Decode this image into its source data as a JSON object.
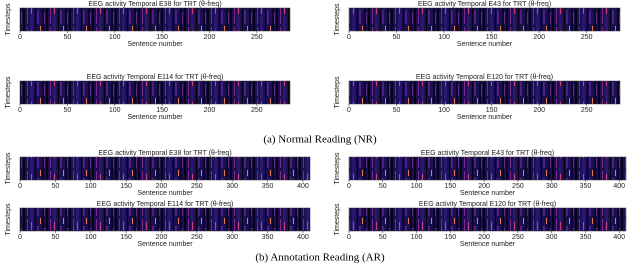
{
  "chart_data": [
    {
      "type": "heatmap",
      "title": "EEG activity Temporal E38 for TRT (θ-freq)",
      "xlabel": "Sentence number",
      "ylabel": "Timesteps",
      "xlim": [
        0,
        285
      ],
      "xticks": [
        0,
        50,
        100,
        150,
        200,
        250
      ]
    },
    {
      "type": "heatmap",
      "title": "EEG activity Temporal E43 for TRT (θ-freq)",
      "xlabel": "Sentence number",
      "ylabel": "Timesteps",
      "xlim": [
        0,
        285
      ],
      "xticks": [
        0,
        50,
        100,
        150,
        200,
        250
      ]
    },
    {
      "type": "heatmap",
      "title": "EEG activity Temporal E114 for TRT (θ-freq)",
      "xlabel": "Sentence number",
      "ylabel": "Timesteps",
      "xlim": [
        0,
        285
      ],
      "xticks": [
        0,
        50,
        100,
        150,
        200,
        250
      ]
    },
    {
      "type": "heatmap",
      "title": "EEG activity Temporal E120 for TRT (θ-freq)",
      "xlabel": "Sentence number",
      "ylabel": "Timesteps",
      "xlim": [
        0,
        285
      ],
      "xticks": [
        0,
        50,
        100,
        150,
        200,
        250
      ]
    },
    {
      "type": "heatmap",
      "title": "EEG activity Temporal E38 for TRT (θ-freq)",
      "xlabel": "Sentence number",
      "ylabel": "Timesteps",
      "xlim": [
        0,
        410
      ],
      "xticks": [
        0,
        50,
        100,
        150,
        200,
        250,
        300,
        350,
        400
      ]
    },
    {
      "type": "heatmap",
      "title": "EEG activity Temporal E43 for TRT (θ-freq)",
      "xlabel": "Sentence number",
      "ylabel": "Timesteps",
      "xlim": [
        0,
        410
      ],
      "xticks": [
        0,
        50,
        100,
        150,
        200,
        250,
        300,
        350,
        400
      ]
    },
    {
      "type": "heatmap",
      "title": "EEG activity Temporal E114 for TRT (θ-freq)",
      "xlabel": "Sentence number",
      "ylabel": "Timesteps",
      "xlim": [
        0,
        410
      ],
      "xticks": [
        0,
        50,
        100,
        150,
        200,
        250,
        300,
        350,
        400
      ]
    },
    {
      "type": "heatmap",
      "title": "EEG activity Temporal E120 for TRT (θ-freq)",
      "xlabel": "Sentence number",
      "ylabel": "Timesteps",
      "xlim": [
        0,
        410
      ],
      "xticks": [
        0,
        50,
        100,
        150,
        200,
        250,
        300,
        350,
        400
      ]
    }
  ],
  "captions": [
    "(a) Normal Reading (NR)",
    "(b) Annotation Reading (AR)"
  ]
}
